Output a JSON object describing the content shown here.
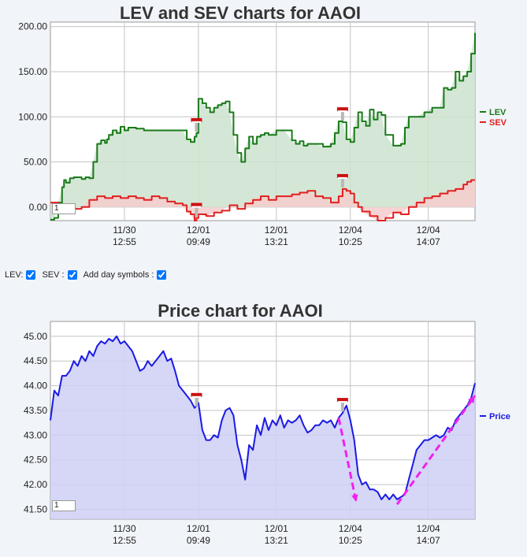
{
  "chart_data": [
    {
      "type": "area",
      "title": "LEV and SEV charts for AAOI",
      "ylim": [
        -15,
        205
      ],
      "y_ticks": [
        "200.00",
        "150.00",
        "100.00",
        "50.00",
        "0.00"
      ],
      "y_tick_values": [
        200,
        150,
        100,
        50,
        0
      ],
      "x_ticks": [
        {
          "date": "11/30",
          "time": "12:55"
        },
        {
          "date": "12/01",
          "time": "09:49"
        },
        {
          "date": "12/01",
          "time": "13:21"
        },
        {
          "date": "12/04",
          "time": "10:25"
        },
        {
          "date": "12/04",
          "time": "14:07"
        }
      ],
      "x_tick_positions": [
        19,
        38,
        58,
        77,
        97
      ],
      "x_range": [
        0,
        109
      ],
      "grid": true,
      "legend_position": "right",
      "day_symbol_positions": [
        37.5,
        75
      ],
      "series": [
        {
          "name": "LEV",
          "color": "#1a7a1a",
          "fill": "#cde3cf",
          "x": [
            0,
            1,
            2,
            3,
            3.5,
            4,
            5,
            6,
            8,
            9,
            10,
            11,
            12,
            13,
            14,
            14.5,
            15,
            16,
            17,
            18,
            19,
            20,
            22,
            24,
            26,
            28,
            30,
            32,
            34,
            35,
            36,
            37,
            37.5,
            38,
            39,
            40,
            41,
            42,
            43,
            44,
            45,
            46,
            47,
            48,
            49,
            50,
            51,
            52,
            53,
            54,
            55,
            56,
            58,
            60,
            62,
            63,
            64,
            65,
            66,
            68,
            70,
            72,
            73,
            74,
            75,
            76,
            77,
            78,
            79,
            80,
            81,
            82,
            83,
            84,
            85,
            86,
            88,
            90,
            91,
            92,
            93,
            94,
            96,
            98,
            100,
            101,
            102,
            103,
            104,
            105,
            106,
            107,
            108,
            109
          ],
          "y": [
            -14,
            -12,
            5,
            22,
            30,
            27,
            32,
            33,
            31,
            33,
            32,
            50,
            70,
            74,
            71,
            75,
            80,
            85,
            82,
            89,
            85,
            88,
            87,
            85,
            85,
            85,
            85,
            85,
            85,
            75,
            72,
            78,
            82,
            120,
            115,
            110,
            105,
            110,
            113,
            115,
            117,
            105,
            80,
            60,
            50,
            65,
            78,
            70,
            78,
            80,
            82,
            80,
            85,
            85,
            74,
            70,
            73,
            68,
            70,
            70,
            67,
            70,
            82,
            95,
            94,
            75,
            72,
            88,
            105,
            95,
            90,
            108,
            97,
            105,
            102,
            80,
            68,
            70,
            88,
            100,
            100,
            100,
            105,
            110,
            110,
            132,
            130,
            132,
            150,
            140,
            145,
            150,
            170,
            193
          ]
        },
        {
          "name": "SEV",
          "color": "#e02020",
          "fill": "#f4cccc",
          "x": [
            0,
            2,
            4,
            6,
            8,
            10,
            12,
            14,
            16,
            18,
            20,
            22,
            24,
            26,
            28,
            30,
            32,
            34,
            35,
            36,
            37,
            37.5,
            38,
            40,
            42,
            44,
            46,
            48,
            50,
            52,
            54,
            56,
            58,
            60,
            62,
            64,
            66,
            68,
            70,
            72,
            74,
            75,
            76,
            77,
            78,
            79,
            80,
            82,
            84,
            86,
            88,
            90,
            92,
            94,
            96,
            98,
            100,
            102,
            104,
            106,
            107,
            108,
            109
          ],
          "y": [
            5,
            2,
            0,
            -2,
            0,
            8,
            12,
            10,
            12,
            10,
            12,
            10,
            8,
            12,
            10,
            6,
            4,
            2,
            -5,
            -8,
            -15,
            -12,
            -8,
            -10,
            -6,
            -4,
            2,
            -2,
            4,
            8,
            12,
            8,
            12,
            12,
            14,
            16,
            18,
            12,
            10,
            5,
            12,
            20,
            18,
            15,
            5,
            0,
            -5,
            -10,
            -15,
            -12,
            -6,
            -8,
            0,
            5,
            10,
            12,
            15,
            18,
            20,
            25,
            28,
            30,
            30
          ]
        }
      ]
    },
    {
      "type": "area",
      "title": "Price chart for AAOI",
      "ylim": [
        41.3,
        45.3
      ],
      "y_ticks": [
        "45.00",
        "44.50",
        "44.00",
        "43.50",
        "43.00",
        "42.50",
        "42.00",
        "41.50"
      ],
      "y_tick_values": [
        45,
        44.5,
        44,
        43.5,
        43,
        42.5,
        42,
        41.5
      ],
      "x_ticks": [
        {
          "date": "11/30",
          "time": "12:55"
        },
        {
          "date": "12/01",
          "time": "09:49"
        },
        {
          "date": "12/01",
          "time": "13:21"
        },
        {
          "date": "12/04",
          "time": "10:25"
        },
        {
          "date": "12/04",
          "time": "14:07"
        }
      ],
      "x_tick_positions": [
        19,
        38,
        58,
        77,
        97
      ],
      "x_range": [
        0,
        109
      ],
      "grid": true,
      "legend_position": "right",
      "day_symbol_positions": [
        37.5,
        75
      ],
      "series": [
        {
          "name": "Price",
          "color": "#1a1ae6",
          "fill": "#cfcff6",
          "x": [
            0,
            1,
            2,
            3,
            4,
            5,
            6,
            7,
            8,
            9,
            10,
            11,
            12,
            13,
            14,
            15,
            16,
            17,
            18,
            19,
            20,
            21,
            22,
            23,
            24,
            25,
            26,
            27,
            28,
            29,
            30,
            31,
            32,
            33,
            34,
            35,
            36,
            37,
            38,
            39,
            40,
            41,
            42,
            43,
            44,
            45,
            46,
            47,
            48,
            49,
            50,
            51,
            52,
            53,
            54,
            55,
            56,
            57,
            58,
            59,
            60,
            61,
            62,
            63,
            64,
            65,
            66,
            67,
            68,
            69,
            70,
            71,
            72,
            73,
            74,
            75,
            76,
            77,
            78,
            79,
            80,
            81,
            82,
            83,
            84,
            85,
            86,
            87,
            88,
            89,
            90,
            91,
            92,
            93,
            94,
            95,
            96,
            97,
            98,
            99,
            100,
            101,
            102,
            103,
            104,
            105,
            106,
            107,
            108,
            109
          ],
          "y": [
            43.3,
            43.9,
            43.8,
            44.2,
            44.2,
            44.3,
            44.5,
            44.4,
            44.6,
            44.5,
            44.7,
            44.6,
            44.8,
            44.9,
            44.85,
            44.95,
            44.9,
            45.0,
            44.85,
            44.9,
            44.8,
            44.7,
            44.5,
            44.3,
            44.35,
            44.5,
            44.4,
            44.5,
            44.6,
            44.7,
            44.5,
            44.55,
            44.3,
            44.0,
            43.9,
            43.8,
            43.7,
            43.55,
            43.65,
            43.1,
            42.9,
            42.9,
            43.0,
            42.95,
            43.3,
            43.5,
            43.55,
            43.4,
            42.8,
            42.5,
            42.1,
            42.8,
            42.7,
            43.2,
            43.0,
            43.35,
            43.1,
            43.3,
            43.2,
            43.4,
            43.15,
            43.3,
            43.25,
            43.3,
            43.4,
            43.2,
            43.05,
            43.1,
            43.2,
            43.2,
            43.3,
            43.25,
            43.3,
            43.15,
            43.35,
            43.45,
            43.6,
            43.3,
            42.9,
            42.2,
            42.0,
            42.05,
            41.9,
            41.9,
            41.85,
            41.7,
            41.8,
            41.7,
            41.8,
            41.7,
            41.75,
            41.8,
            42.1,
            42.4,
            42.7,
            42.8,
            42.9,
            42.9,
            42.95,
            43.0,
            42.95,
            43.0,
            43.15,
            43.1,
            43.3,
            43.4,
            43.5,
            43.6,
            43.75,
            44.05
          ]
        }
      ],
      "annotations": [
        {
          "type": "arrow",
          "from": [
            74,
            43.35
          ],
          "to": [
            78.5,
            41.65
          ],
          "color": "#ee22ee"
        },
        {
          "type": "arrow",
          "from": [
            89,
            41.6
          ],
          "to": [
            109,
            43.8
          ],
          "color": "#ee22ee"
        }
      ]
    }
  ],
  "controls": {
    "lev_label": "LEV:",
    "sev_label": "SEV :",
    "day_symbols_label": "Add day symbols :",
    "period_value": "1"
  }
}
